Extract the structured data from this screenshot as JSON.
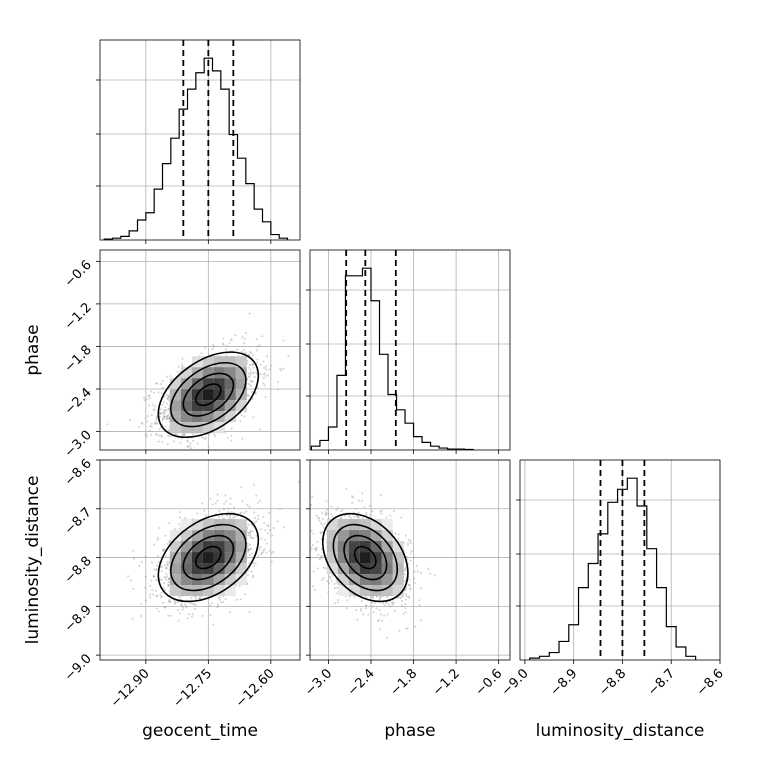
{
  "chart_data": {
    "type": "corner",
    "parameters": [
      "geocent_time",
      "phase",
      "luminosity_distance"
    ],
    "axis_labels": {
      "geocent_time": "geocent_time",
      "phase": "phase",
      "luminosity_distance": "luminosity_distance"
    },
    "ranges": {
      "geocent_time": [
        -13.01,
        -12.53
      ],
      "phase": [
        -3.26,
        -0.44
      ],
      "luminosity_distance": [
        -9.01,
        -8.6
      ]
    },
    "ticks": {
      "geocent_time": [
        -12.9,
        -12.75,
        -12.6
      ],
      "phase": [
        -3.0,
        -2.4,
        -1.8,
        -1.2,
        -0.6
      ],
      "luminosity_distance": [
        -9.0,
        -8.9,
        -8.8,
        -8.7,
        -8.6
      ]
    },
    "tick_labels": {
      "geocent_time": [
        "−12.90",
        "−12.75",
        "−12.60"
      ],
      "phase": [
        "−3.0",
        "−2.4",
        "−1.8",
        "−1.2",
        "−0.6"
      ],
      "luminosity_distance": [
        "−9.0",
        "−8.9",
        "−8.8",
        "−8.7",
        "−8.6"
      ]
    },
    "quantiles": {
      "geocent_time": [
        -12.81,
        -12.75,
        -12.69
      ],
      "phase": [
        -2.75,
        -2.48,
        -2.05
      ],
      "luminosity_distance": [
        -8.845,
        -8.8,
        -8.755
      ]
    },
    "histograms": {
      "geocent_time": {
        "bins": [
          -13.0,
          -12.98,
          -12.96,
          -12.94,
          -12.92,
          -12.9,
          -12.88,
          -12.86,
          -12.84,
          -12.82,
          -12.8,
          -12.78,
          -12.76,
          -12.74,
          -12.72,
          -12.7,
          -12.68,
          -12.66,
          -12.64,
          -12.62,
          -12.6,
          -12.58,
          -12.56
        ],
        "counts": [
          0.005,
          0.01,
          0.02,
          0.05,
          0.11,
          0.15,
          0.28,
          0.42,
          0.56,
          0.72,
          0.83,
          0.92,
          1.0,
          0.93,
          0.83,
          0.58,
          0.45,
          0.31,
          0.17,
          0.1,
          0.03,
          0.01
        ]
      },
      "phase": {
        "bins": [
          -3.24,
          -3.12,
          -3.0,
          -2.88,
          -2.76,
          -2.64,
          -2.52,
          -2.4,
          -2.28,
          -2.16,
          -2.04,
          -1.92,
          -1.8,
          -1.68,
          -1.56,
          -1.44,
          -1.32,
          -1.2,
          -1.08,
          -0.96
        ],
        "counts": [
          0.02,
          0.05,
          0.12,
          0.39,
          0.91,
          0.91,
          0.95,
          0.78,
          0.5,
          0.29,
          0.21,
          0.14,
          0.07,
          0.04,
          0.02,
          0.01,
          0.005,
          0.005,
          0.003
        ]
      },
      "luminosity_distance": {
        "bins": [
          -8.99,
          -8.97,
          -8.95,
          -8.93,
          -8.91,
          -8.89,
          -8.87,
          -8.85,
          -8.83,
          -8.81,
          -8.79,
          -8.77,
          -8.75,
          -8.73,
          -8.71,
          -8.69,
          -8.67,
          -8.65
        ],
        "counts": [
          0.01,
          0.02,
          0.04,
          0.1,
          0.19,
          0.39,
          0.52,
          0.68,
          0.85,
          0.92,
          0.98,
          0.83,
          0.6,
          0.39,
          0.18,
          0.07,
          0.02
        ]
      }
    },
    "joint": [
      {
        "x": "geocent_time",
        "y": "phase",
        "center": [
          -12.75,
          -2.48
        ],
        "sigma": [
          0.06,
          0.3
        ],
        "correlation": 0.45
      },
      {
        "x": "geocent_time",
        "y": "luminosity_distance",
        "center": [
          -12.75,
          -8.8
        ],
        "sigma": [
          0.06,
          0.045
        ],
        "correlation": 0.4
      },
      {
        "x": "phase",
        "y": "luminosity_distance",
        "center": [
          -2.48,
          -8.8
        ],
        "sigma": [
          0.3,
          0.045
        ],
        "correlation": -0.35
      }
    ],
    "grid": true,
    "contour_levels": [
      0.5,
      1.0,
      1.5,
      2.0
    ]
  }
}
